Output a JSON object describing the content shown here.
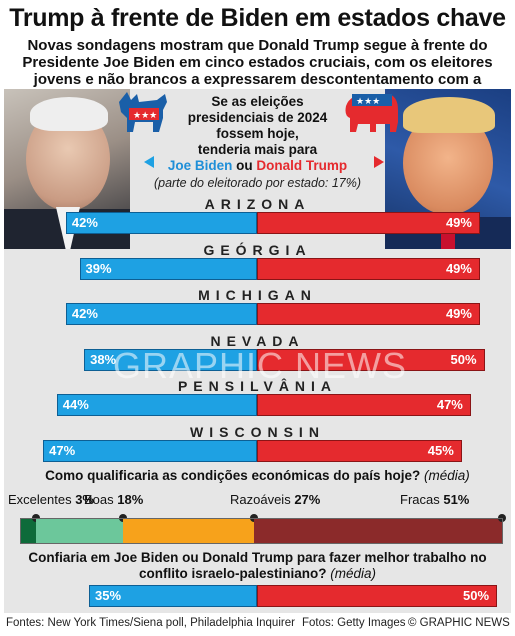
{
  "header": {
    "title": "Trump à frente de Biden em estados chave",
    "subtitle": "Novas sondagens mostram que Donald Trump segue à frente do Presidente Joe Biden em cinco estados cruciais, com os eleitores jovens e não brancos a expressarem descontentamento com a economia e a guerra em Gaza"
  },
  "question": {
    "line1": "Se as eleições",
    "line2": "presidenciais de 2024",
    "line3": "fossem hoje,",
    "line4": "tenderia mais para",
    "biden": "Joe Biden",
    "or": "ou",
    "trump": "Donald Trump",
    "note": "(parte do eleitorado por estado: 17%)"
  },
  "colors": {
    "biden": "#1ea1e3",
    "trump": "#e52a2e",
    "panel": "#e6e6e6",
    "excelentes": "#0e6b3a",
    "boas": "#6cc79b",
    "razoaveis": "#f7a21b",
    "fracas": "#8b2a2a"
  },
  "chart_data": [
    {
      "type": "bar",
      "title": "Se as eleições presidenciais de 2024 fossem hoje, tenderia mais para Joe Biden ou Donald Trump",
      "categories": [
        "ARIZONA",
        "GEÓRGIA",
        "MICHIGAN",
        "NEVADA",
        "PENSILVÂNIA",
        "WISCONSIN"
      ],
      "series": [
        {
          "name": "Joe Biden",
          "values": [
            42,
            39,
            42,
            38,
            44,
            47
          ]
        },
        {
          "name": "Donald Trump",
          "values": [
            49,
            49,
            49,
            50,
            47,
            45
          ]
        }
      ],
      "labels": {
        "biden": [
          "42%",
          "39%",
          "42%",
          "38%",
          "44%",
          "47%"
        ],
        "trump": [
          "49%",
          "49%",
          "49%",
          "50%",
          "47%",
          "45%"
        ]
      }
    },
    {
      "type": "bar",
      "title": "Como qualificaria as condições económicas do país hoje?",
      "title_note": "(média)",
      "categories": [
        "Excelentes",
        "Boas",
        "Razoáveis",
        "Fracas"
      ],
      "values": [
        3,
        18,
        27,
        51
      ],
      "labels": [
        "3%",
        "18%",
        "27%",
        "51%"
      ]
    },
    {
      "type": "bar",
      "title": "Confiaria em Joe Biden ou Donald Trump para fazer melhor trabalho no conflito israelo-palestiniano?",
      "title_note": "(média)",
      "categories": [
        "Joe Biden",
        "Donald Trump"
      ],
      "values": [
        35,
        50
      ],
      "labels": [
        "35%",
        "50%"
      ]
    }
  ],
  "footer": {
    "sources": "Fontes: New York Times/Siena poll, Philadelphia Inquirer",
    "photos": "Fotos: Getty Images",
    "copyright": "© GRAPHIC NEWS"
  },
  "watermark": {
    "logo": "GN",
    "text": "GRAPHIC NEWS"
  }
}
